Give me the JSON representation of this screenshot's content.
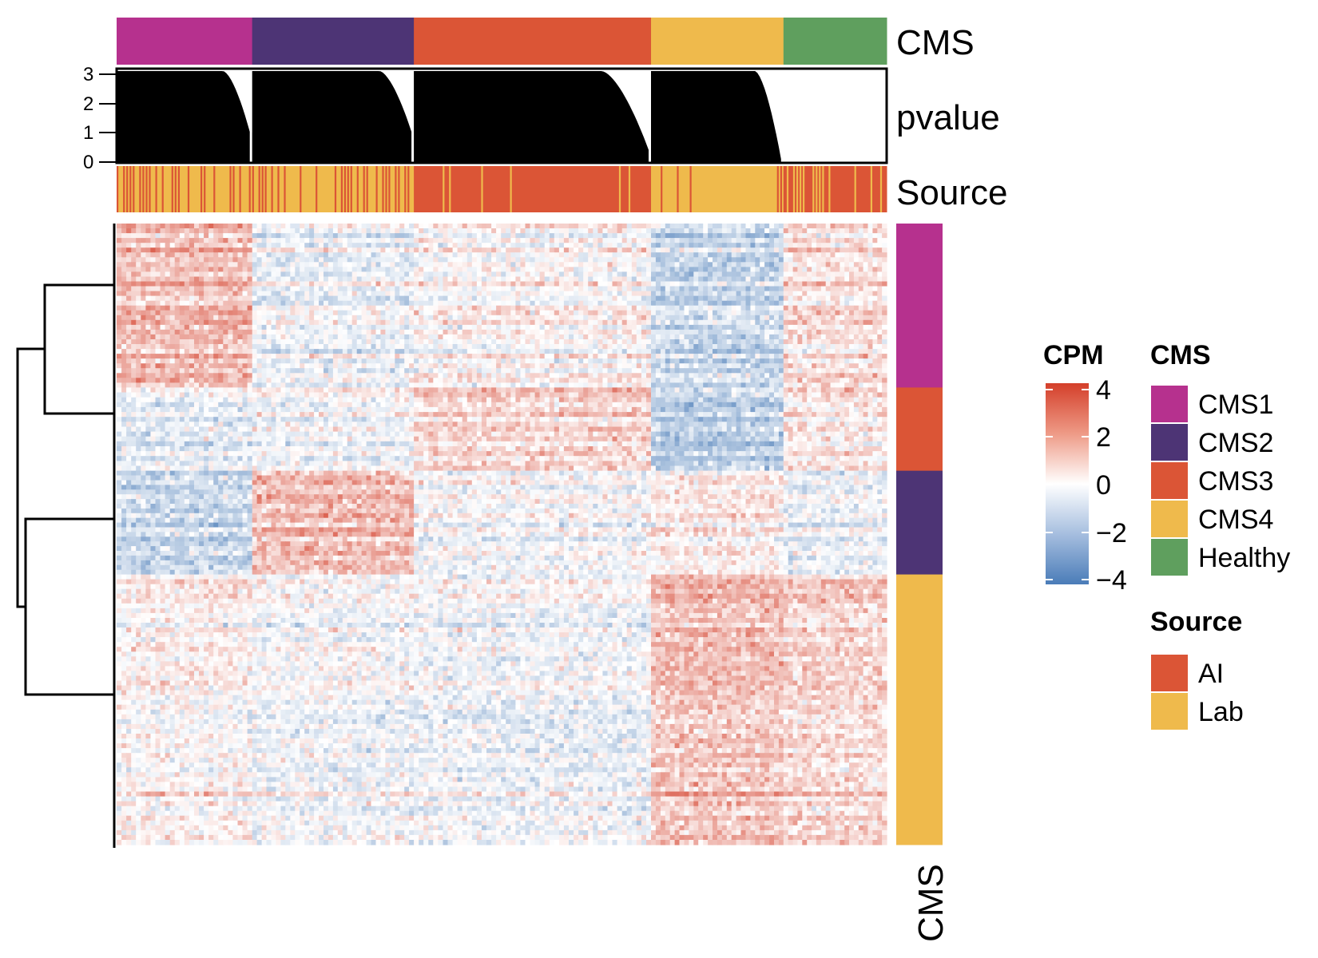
{
  "chart_data": {
    "type": "heatmap",
    "annotations": {
      "top_cms_label": "CMS",
      "pvalue_label": "pvalue",
      "source_label": "Source",
      "right_cms_label": "CMS"
    },
    "pvalue_axis": {
      "ylim": [
        0,
        3
      ],
      "ticks": [
        "3",
        "2",
        "1",
        "0"
      ]
    },
    "column_groups": [
      {
        "cms": "CMS1",
        "fraction": 0.176,
        "pvalue_max": 3,
        "pvalue_min": 1.0
      },
      {
        "cms": "CMS2",
        "fraction": 0.21,
        "pvalue_max": 3,
        "pvalue_min": 1.0
      },
      {
        "cms": "CMS3",
        "fraction": 0.308,
        "pvalue_max": 3,
        "pvalue_min": 0.4
      },
      {
        "cms": "CMS4",
        "fraction": 0.172,
        "pvalue_max": 3,
        "pvalue_min": 0.1
      },
      {
        "cms": "Healthy",
        "fraction": 0.134,
        "pvalue_max": 0,
        "pvalue_min": 0
      }
    ],
    "row_groups": [
      {
        "cms": "CMS1",
        "fraction": 0.264
      },
      {
        "cms": "CMS3",
        "fraction": 0.134
      },
      {
        "cms": "CMS2",
        "fraction": 0.167
      },
      {
        "cms": "CMS4",
        "fraction": 0.435
      }
    ],
    "block_pattern": {
      "columns": [
        "CMS1",
        "CMS2",
        "CMS3",
        "CMS4",
        "Healthy"
      ],
      "rows": [
        "CMS1",
        "CMS3",
        "CMS2",
        "CMS4"
      ],
      "mean_cpm": [
        [
          1.6,
          -0.3,
          0.2,
          -1.2,
          0.8
        ],
        [
          -0.5,
          -0.2,
          1.0,
          -1.6,
          0.6
        ],
        [
          -1.4,
          1.4,
          -0.3,
          0.3,
          -0.6
        ],
        [
          0.2,
          -0.2,
          -0.3,
          1.4,
          0.9
        ]
      ]
    },
    "colorbar": {
      "title": "CPM",
      "range": [
        -4,
        4
      ],
      "ticks": [
        "4",
        "2",
        "0",
        "−2",
        "−4"
      ]
    },
    "legends": {
      "cms": {
        "title": "CMS",
        "items": [
          {
            "label": "CMS1",
            "color": "#B6318E"
          },
          {
            "label": "CMS2",
            "color": "#4D3475"
          },
          {
            "label": "CMS3",
            "color": "#DB5536"
          },
          {
            "label": "CMS4",
            "color": "#EFBA4C"
          },
          {
            "label": "Healthy",
            "color": "#5F9F5E"
          }
        ]
      },
      "source": {
        "title": "Source",
        "items": [
          {
            "label": "AI",
            "color": "#DB5536"
          },
          {
            "label": "Lab",
            "color": "#EFBA4C"
          }
        ]
      }
    },
    "colors": {
      "high": "#D43F2A",
      "mid": "#FFFFFF",
      "low": "#4A7CB8"
    }
  }
}
